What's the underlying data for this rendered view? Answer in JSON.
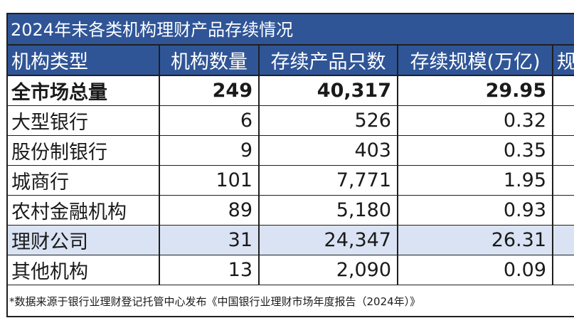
{
  "title": "2024年末各类机构理财产品存续情况",
  "headers": [
    "机构类型",
    "机构数量",
    "存续产品只数",
    "存续规模(万亿)",
    "规"
  ],
  "rows": [
    {
      "type": "全市场总量",
      "count": "249",
      "products": "40,317",
      "scale": "29.95",
      "extra": ""
    },
    {
      "type": "大型银行",
      "count": "6",
      "products": "526",
      "scale": "0.32",
      "extra": ""
    },
    {
      "type": "股份制银行",
      "count": "9",
      "products": "403",
      "scale": "0.35",
      "extra": ""
    },
    {
      "type": "城商行",
      "count": "101",
      "products": "7,771",
      "scale": "1.95",
      "extra": ""
    },
    {
      "type": "农村金融机构",
      "count": "89",
      "products": "5,180",
      "scale": "0.93",
      "extra": ""
    },
    {
      "type": "理财公司",
      "count": "31",
      "products": "24,347",
      "scale": "26.31",
      "extra": ""
    },
    {
      "type": "其他机构",
      "count": "13",
      "products": "2,090",
      "scale": "0.09",
      "extra": ""
    }
  ],
  "footnote": "*数据来源于银行业理财登记托管中心发布《中国银行业理财市场年度报告（2024年）》",
  "colors": {
    "header_bg": "#2f5597",
    "highlight_row": "#dae3f3"
  }
}
